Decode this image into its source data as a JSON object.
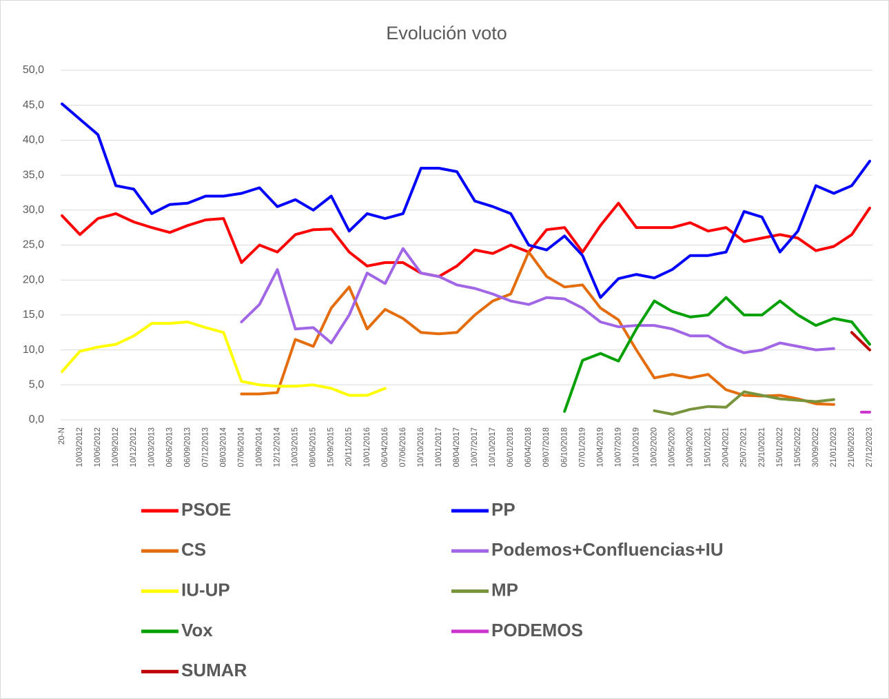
{
  "chart_data": {
    "type": "line",
    "title": "Evolución voto",
    "categories": [
      "20-N",
      "10/03/2012",
      "10/06/2012",
      "10/09/2012",
      "10/12/2012",
      "10/03/2013",
      "06/06/2013",
      "06/09/2013",
      "07/12/2013",
      "08/03/2014",
      "07/06/2014",
      "10/09/2014",
      "12/12/2014",
      "10/03/2015",
      "08/06/2015",
      "15/09/2015",
      "20/11/2015",
      "10/01/2016",
      "06/04/2016",
      "07/06/2016",
      "10/10/2016",
      "10/01/2017",
      "08/04/2017",
      "10/07/2017",
      "10/10/2017",
      "06/01/2018",
      "06/04/2018",
      "09/07/2018",
      "06/10/2018",
      "07/01/2019",
      "10/04/2019",
      "10/07/2019",
      "10/10/2019",
      "10/02/2020",
      "10/05/2020",
      "10/09/2020",
      "15/01/2021",
      "20/04/2021",
      "25/07/2021",
      "23/10/2021",
      "15/01/2022",
      "15/05/2022",
      "30/09/2022",
      "21/01/2023",
      "21/06/2023",
      "27/12/2023"
    ],
    "series": [
      {
        "name": "PSOE",
        "color": "#ff0000",
        "values": [
          29.2,
          26.5,
          28.8,
          29.5,
          28.3,
          27.5,
          26.8,
          27.8,
          28.6,
          28.8,
          22.5,
          25.0,
          24.0,
          26.5,
          27.2,
          27.3,
          24.0,
          22.0,
          22.5,
          22.5,
          21.0,
          20.5,
          22.0,
          24.3,
          23.8,
          25.0,
          24.0,
          27.2,
          27.5,
          24.0,
          27.8,
          31.0,
          27.5,
          27.5,
          27.5,
          28.2,
          27.0,
          27.5,
          25.5,
          26.0,
          26.5,
          26.0,
          24.2,
          24.8,
          26.5,
          30.3
        ]
      },
      {
        "name": "PP",
        "color": "#0000ff",
        "values": [
          45.2,
          43.0,
          40.8,
          33.5,
          33.0,
          29.5,
          30.8,
          31.0,
          32.0,
          32.0,
          32.4,
          33.2,
          30.5,
          31.5,
          30.0,
          32.0,
          27.0,
          29.5,
          28.8,
          29.5,
          36.0,
          36.0,
          35.5,
          31.3,
          30.5,
          29.5,
          25.0,
          24.3,
          26.3,
          23.5,
          17.5,
          20.2,
          20.8,
          20.3,
          21.5,
          23.5,
          23.5,
          24.0,
          29.8,
          29.0,
          24.0,
          27.0,
          33.5,
          32.4,
          33.5,
          37.0
        ]
      },
      {
        "name": "CS",
        "color": "#e46c0a",
        "values": [
          null,
          null,
          null,
          null,
          null,
          null,
          null,
          null,
          null,
          null,
          3.7,
          3.7,
          3.9,
          11.5,
          10.5,
          16.0,
          19.0,
          13.0,
          15.8,
          14.5,
          12.5,
          12.3,
          12.5,
          15.0,
          17.0,
          18.0,
          24.0,
          20.5,
          19.0,
          19.3,
          16.0,
          14.3,
          10.0,
          6.0,
          6.5,
          6.0,
          6.5,
          4.3,
          3.5,
          3.4,
          3.5,
          3.0,
          2.3,
          2.2,
          null,
          null
        ]
      },
      {
        "name": "Podemos+Confluencias+IU",
        "color": "#a066e6",
        "values": [
          null,
          null,
          null,
          null,
          null,
          null,
          null,
          null,
          null,
          null,
          14.0,
          16.5,
          21.5,
          13.0,
          13.2,
          11.0,
          15.0,
          21.0,
          19.5,
          24.5,
          21.0,
          20.5,
          19.3,
          18.8,
          18.0,
          17.0,
          16.5,
          17.5,
          17.3,
          16.0,
          14.0,
          13.3,
          13.5,
          13.5,
          13.0,
          12.0,
          12.0,
          10.5,
          9.6,
          10.0,
          11.0,
          10.5,
          10.0,
          10.2,
          null,
          null
        ]
      },
      {
        "name": "IU-UP",
        "color": "#ffff00",
        "values": [
          6.9,
          9.8,
          10.4,
          10.8,
          12.0,
          13.8,
          13.8,
          14.0,
          13.2,
          12.5,
          5.5,
          5.0,
          4.8,
          4.8,
          5.0,
          4.5,
          3.5,
          3.5,
          4.5,
          null,
          null,
          null,
          null,
          null,
          null,
          null,
          null,
          null,
          null,
          null,
          null,
          null,
          null,
          null,
          null,
          null,
          null,
          null,
          null,
          null,
          null,
          null,
          null,
          null,
          null,
          null
        ]
      },
      {
        "name": "MP",
        "color": "#77933c",
        "values": [
          null,
          null,
          null,
          null,
          null,
          null,
          null,
          null,
          null,
          null,
          null,
          null,
          null,
          null,
          null,
          null,
          null,
          null,
          null,
          null,
          null,
          null,
          null,
          null,
          null,
          null,
          null,
          null,
          null,
          null,
          null,
          null,
          null,
          1.3,
          0.8,
          1.5,
          1.9,
          1.8,
          4.0,
          3.5,
          3.0,
          2.8,
          2.6,
          2.9,
          null,
          null
        ]
      },
      {
        "name": "Vox",
        "color": "#00a000",
        "values": [
          null,
          null,
          null,
          null,
          null,
          null,
          null,
          null,
          null,
          null,
          null,
          null,
          null,
          null,
          null,
          null,
          null,
          null,
          null,
          null,
          null,
          null,
          null,
          null,
          null,
          null,
          null,
          null,
          1.2,
          8.5,
          9.5,
          8.4,
          13.0,
          17.0,
          15.5,
          14.7,
          15.0,
          17.5,
          15.0,
          15.0,
          17.0,
          15.0,
          13.5,
          14.5,
          14.0,
          10.8
        ]
      },
      {
        "name": "PODEMOS",
        "color": "#cc33cc",
        "values": [
          null,
          null,
          null,
          null,
          null,
          null,
          null,
          null,
          null,
          null,
          null,
          null,
          null,
          null,
          null,
          null,
          null,
          null,
          null,
          null,
          null,
          null,
          null,
          null,
          null,
          null,
          null,
          null,
          null,
          null,
          null,
          null,
          null,
          null,
          null,
          null,
          null,
          null,
          null,
          null,
          null,
          null,
          null,
          null,
          null,
          1.1
        ]
      },
      {
        "name": "SUMAR",
        "color": "#c00000",
        "values": [
          null,
          null,
          null,
          null,
          null,
          null,
          null,
          null,
          null,
          null,
          null,
          null,
          null,
          null,
          null,
          null,
          null,
          null,
          null,
          null,
          null,
          null,
          null,
          null,
          null,
          null,
          null,
          null,
          null,
          null,
          null,
          null,
          null,
          null,
          null,
          null,
          null,
          null,
          null,
          null,
          null,
          null,
          null,
          null,
          12.5,
          10.0
        ]
      }
    ],
    "ylim": [
      0,
      50
    ],
    "yticks": [
      {
        "value": 0,
        "label": "0,0"
      },
      {
        "value": 5,
        "label": "5,0"
      },
      {
        "value": 10,
        "label": "10,0"
      },
      {
        "value": 15,
        "label": "15,0"
      },
      {
        "value": 20,
        "label": "20,0"
      },
      {
        "value": 25,
        "label": "25,0"
      },
      {
        "value": 30,
        "label": "30,0"
      },
      {
        "value": 35,
        "label": "35,0"
      },
      {
        "value": 40,
        "label": "40,0"
      },
      {
        "value": 45,
        "label": "45,0"
      },
      {
        "value": 50,
        "label": "50,0"
      }
    ],
    "grid": true,
    "legend": "bottom"
  }
}
